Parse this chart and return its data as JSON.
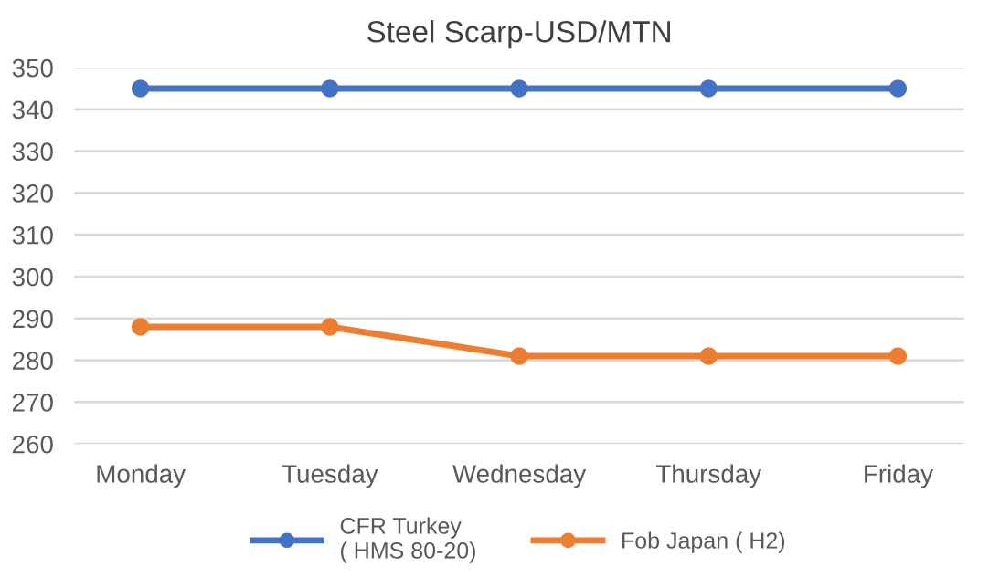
{
  "chart_data": {
    "type": "line",
    "title": "Steel Scarp-USD/MTN",
    "categories": [
      "Monday",
      "Tuesday",
      "Wednesday",
      "Thursday",
      "Friday"
    ],
    "series": [
      {
        "name": "CFR Turkey\n( HMS 80-20)",
        "color": "#4472c4",
        "values": [
          345,
          345,
          345,
          345,
          345
        ]
      },
      {
        "name": "Fob Japan ( H2)",
        "color": "#ed7d31",
        "values": [
          288,
          288,
          281,
          281,
          281
        ]
      }
    ],
    "ylim": [
      260,
      350
    ],
    "yticks": [
      260,
      270,
      280,
      290,
      300,
      310,
      320,
      330,
      340,
      350
    ],
    "grid": "y",
    "legend": "bottom",
    "marker": "circle",
    "line_style": "solid"
  }
}
